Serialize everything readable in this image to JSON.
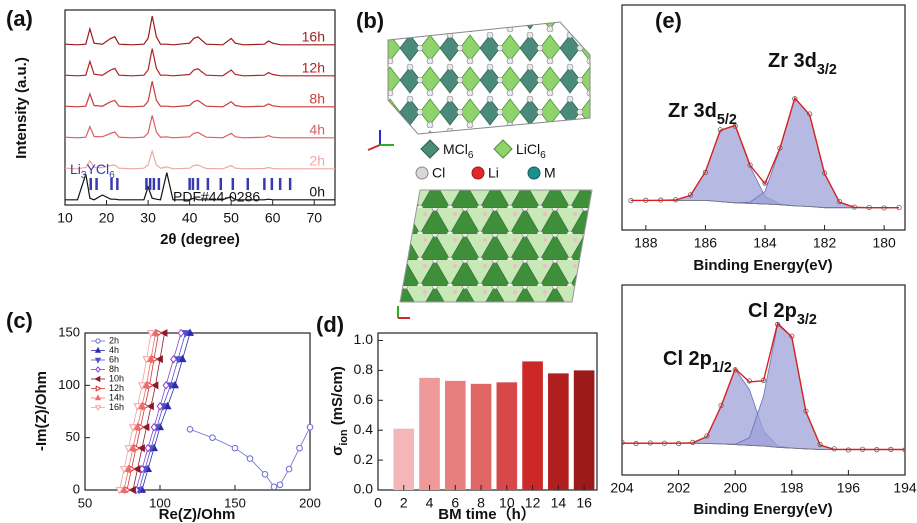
{
  "panels": [
    "(a)",
    "(b)",
    "(c)",
    "(d)",
    "(e)"
  ],
  "structure": {
    "legend": [
      [
        "MCl",
        {
          "sub": "6"
        }
      ],
      [
        "LiCl",
        {
          "sub": "6"
        }
      ],
      "Cl",
      "Li",
      "M"
    ]
  },
  "chart_data": [
    {
      "type": "line",
      "xlabel": "2θ (degree)",
      "ylabel": "Intensity (a.u.)",
      "xlim": [
        10,
        75
      ],
      "xticks": [
        10,
        20,
        30,
        40,
        50,
        60,
        70
      ],
      "x": [
        10,
        13,
        15,
        16,
        17,
        19,
        21,
        22,
        23,
        26,
        29,
        30,
        31,
        32,
        33,
        34.5,
        36,
        40,
        41,
        42,
        44,
        48,
        50,
        51,
        53,
        58,
        59,
        60,
        62,
        66,
        70,
        75
      ],
      "series": [
        {
          "name": "16h",
          "color": "#9b1c1c",
          "values": [
            0.12,
            0.1,
            0.12,
            0.6,
            0.15,
            0.12,
            0.3,
            0.35,
            0.12,
            0.1,
            0.12,
            0.3,
            1.0,
            0.35,
            0.12,
            0.12,
            0.1,
            0.15,
            0.3,
            0.35,
            0.12,
            0.1,
            0.3,
            0.15,
            0.1,
            0.12,
            0.22,
            0.15,
            0.1,
            0.1,
            0.1,
            0.1
          ]
        },
        {
          "name": "12h",
          "color": "#b22222",
          "values": [
            0.12,
            0.1,
            0.12,
            0.55,
            0.15,
            0.12,
            0.28,
            0.33,
            0.12,
            0.1,
            0.12,
            0.28,
            0.95,
            0.33,
            0.12,
            0.12,
            0.1,
            0.14,
            0.28,
            0.32,
            0.12,
            0.1,
            0.28,
            0.14,
            0.1,
            0.12,
            0.2,
            0.14,
            0.1,
            0.1,
            0.1,
            0.1
          ]
        },
        {
          "name": "8h",
          "color": "#c83c3c",
          "values": [
            0.12,
            0.1,
            0.12,
            0.5,
            0.14,
            0.12,
            0.26,
            0.3,
            0.12,
            0.1,
            0.12,
            0.27,
            0.9,
            0.3,
            0.12,
            0.12,
            0.1,
            0.14,
            0.26,
            0.3,
            0.12,
            0.1,
            0.26,
            0.14,
            0.1,
            0.12,
            0.19,
            0.13,
            0.1,
            0.1,
            0.1,
            0.1
          ]
        },
        {
          "name": "4h",
          "color": "#d86060",
          "values": [
            0.12,
            0.1,
            0.12,
            0.45,
            0.14,
            0.13,
            0.24,
            0.28,
            0.12,
            0.1,
            0.12,
            0.25,
            0.8,
            0.28,
            0.12,
            0.13,
            0.1,
            0.13,
            0.24,
            0.27,
            0.12,
            0.1,
            0.24,
            0.13,
            0.1,
            0.12,
            0.17,
            0.12,
            0.1,
            0.1,
            0.1,
            0.1
          ]
        },
        {
          "name": "2h",
          "color": "#f0a8a8",
          "values": [
            0.12,
            0.1,
            0.14,
            0.35,
            0.14,
            0.14,
            0.2,
            0.22,
            0.12,
            0.1,
            0.12,
            0.22,
            0.65,
            0.22,
            0.12,
            0.16,
            0.1,
            0.12,
            0.2,
            0.22,
            0.11,
            0.1,
            0.2,
            0.12,
            0.1,
            0.11,
            0.14,
            0.11,
            0.1,
            0.1,
            0.1,
            0.1
          ]
        },
        {
          "name": "0h",
          "color": "#111111",
          "values": [
            0.1,
            0.1,
            0.9,
            0.15,
            0.1,
            0.25,
            0.12,
            0.12,
            0.1,
            0.1,
            0.1,
            0.5,
            0.15,
            0.12,
            0.1,
            0.95,
            0.1,
            0.1,
            0.15,
            0.1,
            0.1,
            0.1,
            0.2,
            0.1,
            0.1,
            0.1,
            0.12,
            0.1,
            0.1,
            0.1,
            0.1,
            0.1
          ]
        }
      ],
      "reference": {
        "name": [
          "Li",
          {
            "sub": "3"
          },
          "YCl",
          {
            "sub": "6"
          }
        ],
        "label": "PDF#44-0286",
        "color": "#3a3ab0",
        "positions": [
          16.2,
          17.6,
          21.2,
          22.6,
          29.6,
          30.5,
          31.4,
          32.6,
          40,
          40.8,
          42,
          44.4,
          47.5,
          50.4,
          54,
          58,
          59.8,
          61.8,
          64.2
        ]
      }
    },
    {
      "type": "scatter",
      "xlabel": "Re(Z)/Ohm",
      "ylabel": "-Im(Z)/Ohm",
      "xlim": [
        50,
        200
      ],
      "xticks": [
        50,
        100,
        150,
        200
      ],
      "ylim": [
        0,
        150
      ],
      "yticks": [
        0,
        50,
        100,
        150
      ],
      "legend": "upper left",
      "series": [
        {
          "name": "2h",
          "color": "#6b6bd6",
          "marker": "circle",
          "filled": false,
          "x": [
            120,
            135,
            150,
            160,
            170,
            176,
            180,
            186,
            193,
            200
          ],
          "values": [
            58,
            50,
            40,
            30,
            15,
            3,
            5,
            20,
            40,
            60
          ]
        },
        {
          "name": "4h",
          "color": "#2b2bb0",
          "marker": "triangle-up",
          "filled": true,
          "x": [
            88,
            92,
            96,
            100,
            105,
            110,
            115,
            120
          ],
          "values": [
            0,
            20,
            40,
            60,
            80,
            100,
            125,
            150
          ]
        },
        {
          "name": "6h",
          "color": "#5050c8",
          "marker": "triangle-down",
          "filled": true,
          "x": [
            86,
            90,
            94,
            98,
            102,
            107,
            112,
            117
          ],
          "values": [
            0,
            20,
            40,
            60,
            80,
            100,
            125,
            150
          ]
        },
        {
          "name": "8h",
          "color": "#8a3fd0",
          "marker": "diamond",
          "filled": false,
          "x": [
            84,
            88,
            92,
            96,
            100,
            104,
            109,
            114
          ],
          "values": [
            0,
            20,
            40,
            60,
            80,
            100,
            125,
            150
          ]
        },
        {
          "name": "10h",
          "color": "#8b1a2a",
          "marker": "triangle-left",
          "filled": true,
          "x": [
            82,
            85,
            88,
            91,
            94,
            97,
            100,
            103
          ],
          "values": [
            0,
            20,
            40,
            60,
            80,
            100,
            125,
            150
          ]
        },
        {
          "name": "12h",
          "color": "#d83030",
          "marker": "triangle-right",
          "filled": false,
          "x": [
            78,
            81,
            84,
            87,
            90,
            93,
            96,
            99
          ],
          "values": [
            0,
            20,
            40,
            60,
            80,
            100,
            125,
            150
          ]
        },
        {
          "name": "14h",
          "color": "#f06a6a",
          "marker": "triangle-up",
          "filled": true,
          "x": [
            76,
            79,
            82,
            85,
            88,
            91,
            94,
            97
          ],
          "values": [
            0,
            20,
            40,
            60,
            80,
            100,
            125,
            150
          ]
        },
        {
          "name": "16h",
          "color": "#f5a0a0",
          "marker": "triangle-down",
          "filled": false,
          "x": [
            73,
            76,
            79,
            82,
            85,
            88,
            91,
            94
          ],
          "values": [
            0,
            20,
            40,
            60,
            80,
            100,
            125,
            150
          ]
        }
      ]
    },
    {
      "type": "bar",
      "xlabel": "BM time（h）",
      "ylabel": [
        "σ",
        {
          "sub": "ion"
        },
        " (mS/cm)"
      ],
      "xlim": [
        0,
        17
      ],
      "xticks": [
        0,
        2,
        4,
        6,
        8,
        10,
        12,
        14,
        16
      ],
      "ylim": [
        0,
        1.05
      ],
      "yticks": [
        {
          "value": 0,
          "label": "0.0"
        },
        0.2,
        0.4,
        0.6,
        0.8,
        {
          "value": 1,
          "label": "1.0"
        }
      ],
      "x": [
        2,
        4,
        6,
        8,
        10,
        12,
        14,
        16
      ],
      "values": [
        0.41,
        0.75,
        0.73,
        0.71,
        0.72,
        0.86,
        0.78,
        0.8
      ],
      "colors": [
        "#f4b6b6",
        "#ee9a9a",
        "#e87f7f",
        "#e06666",
        "#d84848",
        "#cc2828",
        "#b01e1e",
        "#9c1a1a"
      ]
    },
    {
      "type": "spectrum",
      "xlabel": "Binding Energy(eV)",
      "xlim": [
        188.8,
        179.3
      ],
      "xticks": [
        188,
        186,
        184,
        182,
        180
      ],
      "annotations": [
        [
          "Zr 3d",
          {
            "sub": "5/2"
          }
        ],
        [
          "Zr 3d",
          {
            "sub": "3/2"
          }
        ]
      ],
      "x": [
        188.5,
        188,
        187.5,
        187,
        186.5,
        186,
        185.5,
        185,
        184.5,
        184,
        183.5,
        183,
        182.5,
        182,
        181.5,
        181,
        180.5,
        180,
        179.5
      ],
      "background": {
        "color": "#777777",
        "values": [
          0.12,
          0.12,
          0.12,
          0.12,
          0.12,
          0.12,
          0.11,
          0.1,
          0.095,
          0.09,
          0.085,
          0.075,
          0.07,
          0.06,
          0.06,
          0.06,
          0.06,
          0.06,
          0.06
        ]
      },
      "components": [
        {
          "color": "#9ea2d8",
          "values": [
            0.12,
            0.12,
            0.121,
            0.123,
            0.161,
            0.356,
            0.696,
            0.736,
            0.398,
            0.153,
            0.091,
            0.075,
            0.07,
            0.06,
            0.06,
            0.06,
            0.06,
            0.06,
            0.06
          ]
        },
        {
          "color": "#9ea2d8",
          "values": [
            0.12,
            0.12,
            0.12,
            0.12,
            0.12,
            0.12,
            0.11,
            0.1,
            0.105,
            0.193,
            0.542,
            0.961,
            0.822,
            0.339,
            0.105,
            0.063,
            0.06,
            0.06,
            0.06
          ]
        }
      ],
      "fit": {
        "color": "#d81f1f",
        "values": [
          0.12,
          0.12,
          0.121,
          0.123,
          0.161,
          0.356,
          0.696,
          0.736,
          0.408,
          0.256,
          0.548,
          0.961,
          0.822,
          0.339,
          0.105,
          0.063,
          0.06,
          0.06,
          0.06
        ]
      },
      "measured": {
        "color": "#666666",
        "values": [
          0.118,
          0.121,
          0.123,
          0.125,
          0.165,
          0.35,
          0.7,
          0.73,
          0.41,
          0.262,
          0.55,
          0.955,
          0.83,
          0.345,
          0.11,
          0.065,
          0.062,
          0.058,
          0.061
        ]
      }
    },
    {
      "type": "spectrum",
      "xlabel": "Binding Energy(eV)",
      "xlim": [
        204,
        194
      ],
      "xticks": [
        204,
        202,
        200,
        198,
        196,
        194
      ],
      "annotations": [
        [
          "Cl 2p",
          {
            "sub": "1/2"
          }
        ],
        [
          "Cl 2p",
          {
            "sub": "3/2"
          }
        ]
      ],
      "x": [
        204,
        203.5,
        203,
        202.5,
        202,
        201.5,
        201,
        200.5,
        200,
        199.5,
        199,
        198.5,
        198,
        197.5,
        197,
        196.5,
        196,
        195.5,
        195,
        194.5,
        194
      ],
      "background": {
        "color": "#777777",
        "values": [
          0.12,
          0.12,
          0.12,
          0.12,
          0.12,
          0.12,
          0.118,
          0.115,
          0.11,
          0.105,
          0.1,
          0.09,
          0.085,
          0.08,
          0.075,
          0.075,
          0.075,
          0.075,
          0.075,
          0.075,
          0.075
        ]
      },
      "components": [
        {
          "color": "#9ea2d8",
          "values": [
            0.12,
            0.12,
            0.12,
            0.12,
            0.12,
            0.123,
            0.167,
            0.383,
            0.649,
            0.505,
            0.209,
            0.101,
            0.085,
            0.08,
            0.075,
            0.075,
            0.075,
            0.075,
            0.075,
            0.075,
            0.075
          ]
        },
        {
          "color": "#9ea2d8",
          "values": [
            0.12,
            0.12,
            0.12,
            0.12,
            0.12,
            0.12,
            0.118,
            0.115,
            0.113,
            0.158,
            0.457,
            0.967,
            0.879,
            0.344,
            0.107,
            0.076,
            0.075,
            0.075,
            0.075,
            0.075,
            0.075
          ]
        }
      ],
      "fit": {
        "color": "#d81f1f",
        "values": [
          0.12,
          0.12,
          0.12,
          0.12,
          0.12,
          0.123,
          0.167,
          0.383,
          0.652,
          0.558,
          0.566,
          0.978,
          0.879,
          0.344,
          0.107,
          0.076,
          0.075,
          0.075,
          0.075,
          0.075,
          0.075
        ]
      },
      "measured": {
        "color": "#666666",
        "values": [
          0.125,
          0.118,
          0.122,
          0.12,
          0.118,
          0.126,
          0.172,
          0.39,
          0.645,
          0.565,
          0.57,
          0.97,
          0.885,
          0.35,
          0.11,
          0.08,
          0.072,
          0.077,
          0.074,
          0.076,
          0.073
        ]
      }
    }
  ]
}
